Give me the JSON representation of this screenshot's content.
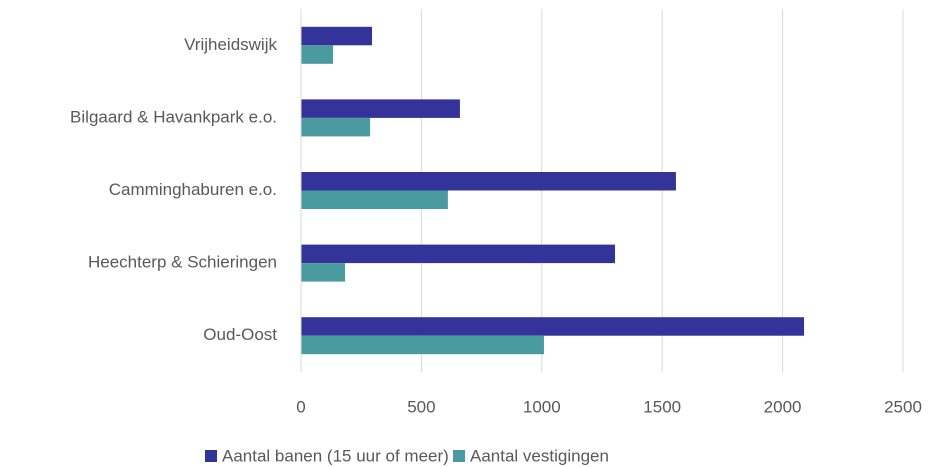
{
  "chart_data": {
    "type": "bar",
    "orientation": "horizontal",
    "categories": [
      "Vrijheidswijk",
      "Bilgaard & Havankpark e.o.",
      "Camminghaburen e.o.",
      "Heechterp & Schieringen",
      "Oud-Oost"
    ],
    "series": [
      {
        "name": "Aantal banen (15 uur of meer)",
        "color": "#333399",
        "values": [
          295,
          660,
          1557,
          1304,
          2089
        ]
      },
      {
        "name": "Aantal vestigingen",
        "color": "#4a9ba0",
        "values": [
          133,
          287,
          610,
          183,
          1009
        ]
      }
    ],
    "xlim": [
      0,
      2500
    ],
    "xticks": [
      0,
      500,
      1000,
      1500,
      2000,
      2500
    ],
    "grid": true,
    "legend": "bottom"
  }
}
